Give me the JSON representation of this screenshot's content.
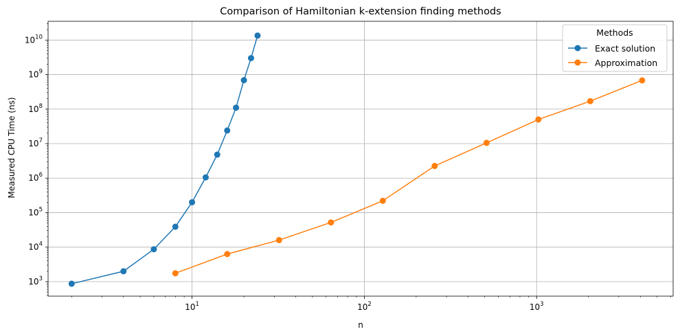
{
  "chart_data": {
    "type": "line",
    "title": "Comparison of Hamiltonian k-extension finding methods",
    "xlabel": "n",
    "ylabel": "Measured CPU Time (ns)",
    "xscale": "log",
    "yscale": "log",
    "xlim": [
      1.46,
      6200
    ],
    "ylim": [
      380,
      35000000000
    ],
    "grid": true,
    "legend": {
      "title": "Methods",
      "position": "top-right"
    },
    "x_ticks": [
      {
        "value": 10,
        "base": "10",
        "exp": "1"
      },
      {
        "value": 100,
        "base": "10",
        "exp": "2"
      },
      {
        "value": 1000,
        "base": "10",
        "exp": "3"
      }
    ],
    "y_ticks": [
      {
        "value": 1000,
        "base": "10",
        "exp": "3"
      },
      {
        "value": 10000,
        "base": "10",
        "exp": "4"
      },
      {
        "value": 100000,
        "base": "10",
        "exp": "5"
      },
      {
        "value": 1000000,
        "base": "10",
        "exp": "6"
      },
      {
        "value": 10000000,
        "base": "10",
        "exp": "7"
      },
      {
        "value": 100000000,
        "base": "10",
        "exp": "8"
      },
      {
        "value": 1000000000,
        "base": "10",
        "exp": "9"
      },
      {
        "value": 10000000000,
        "base": "10",
        "exp": "10"
      }
    ],
    "series": [
      {
        "name": "Exact solution",
        "color": "#1f77b4",
        "x": [
          2,
          4,
          6,
          8,
          10,
          12,
          14,
          16,
          18,
          20,
          22,
          24
        ],
        "y": [
          870,
          2000,
          8700,
          39000,
          200000,
          1050000,
          4800000,
          24000000,
          110000000,
          690000000,
          3000000000,
          13500000000
        ]
      },
      {
        "name": "Approximation",
        "color": "#ff7f0e",
        "x": [
          8,
          16,
          32,
          64,
          128,
          256,
          512,
          1024,
          2048,
          4096
        ],
        "y": [
          1750,
          6300,
          16000,
          52000,
          220000,
          2250000,
          10500000,
          50000000,
          170000000,
          680000000
        ]
      }
    ]
  }
}
